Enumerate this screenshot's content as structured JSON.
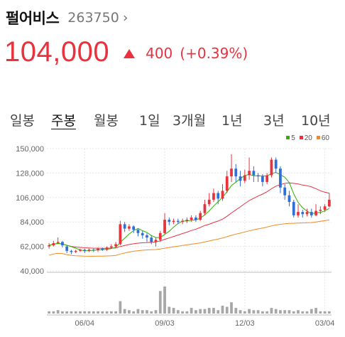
{
  "stock": {
    "name": "펄어비스",
    "code": "263750",
    "chevron": "›",
    "price": "104,000",
    "change": "400",
    "change_pct": "(+0.39%)"
  },
  "tabs": [
    "일봉",
    "주봉",
    "월봉",
    "1일",
    "3개월",
    "1년",
    "3년",
    "10년"
  ],
  "active_tab": "주봉",
  "legend": [
    {
      "label": "5",
      "color": "#2db400"
    },
    {
      "label": "20",
      "color": "#e8333f"
    },
    {
      "label": "60",
      "color": "#f28a23"
    }
  ],
  "colors": {
    "up": "#e8333f",
    "down": "#2f6fd6",
    "volume": "#a7a7a7",
    "grid": "#e6e6e6",
    "axis_text": "#666666"
  },
  "chart_data": {
    "type": "candlestick",
    "y_ticks": [
      "150,000",
      "128,000",
      "106,000",
      "84,000",
      "62,000",
      "40,000"
    ],
    "y_tick_values": [
      150000,
      128000,
      106000,
      84000,
      62000,
      40000
    ],
    "ylim": [
      40000,
      150000
    ],
    "x_ticks": [
      "06/04",
      "09/03",
      "12/03",
      "03/04"
    ],
    "x_tick_indices": [
      8,
      26,
      44,
      62
    ],
    "candles": [
      [
        62000,
        63000,
        60000,
        65000
      ],
      [
        63000,
        65000,
        62000,
        67000
      ],
      [
        65000,
        66000,
        64000,
        70000
      ],
      [
        66000,
        63000,
        61000,
        67000
      ],
      [
        62000,
        58000,
        56000,
        63000
      ],
      [
        58000,
        57000,
        55000,
        59000
      ],
      [
        57000,
        58000,
        56000,
        59000
      ],
      [
        58000,
        59000,
        57000,
        60000
      ],
      [
        59000,
        58000,
        56000,
        60000
      ],
      [
        58000,
        59000,
        57000,
        60000
      ],
      [
        59000,
        58500,
        57000,
        60000
      ],
      [
        58500,
        60000,
        57000,
        61000
      ],
      [
        60000,
        59000,
        58000,
        61000
      ],
      [
        59000,
        61000,
        58000,
        62000
      ],
      [
        61000,
        62000,
        60000,
        64000
      ],
      [
        62000,
        64000,
        61000,
        66000
      ],
      [
        64000,
        82000,
        63000,
        85000
      ],
      [
        82000,
        78000,
        75000,
        84000
      ],
      [
        78000,
        80000,
        76000,
        82000
      ],
      [
        80000,
        77000,
        74000,
        81000
      ],
      [
        77000,
        74000,
        71000,
        78000
      ],
      [
        74000,
        72000,
        69000,
        76000
      ],
      [
        72000,
        70000,
        66000,
        74000
      ],
      [
        70000,
        66000,
        64000,
        72000
      ],
      [
        66000,
        68000,
        62000,
        70000
      ],
      [
        68000,
        74000,
        66000,
        76000
      ],
      [
        74000,
        86000,
        73000,
        92000
      ],
      [
        86000,
        84000,
        81000,
        88000
      ],
      [
        84000,
        85000,
        82000,
        87000
      ],
      [
        85000,
        84000,
        82000,
        87000
      ],
      [
        84000,
        85000,
        82000,
        87000
      ],
      [
        85000,
        86000,
        83000,
        88000
      ],
      [
        86000,
        88000,
        84000,
        90000
      ],
      [
        88000,
        86000,
        84000,
        90000
      ],
      [
        86000,
        92000,
        85000,
        94000
      ],
      [
        92000,
        100000,
        90000,
        104000
      ],
      [
        100000,
        104000,
        98000,
        110000
      ],
      [
        104000,
        110000,
        102000,
        114000
      ],
      [
        110000,
        105000,
        100000,
        112000
      ],
      [
        105000,
        112000,
        103000,
        118000
      ],
      [
        112000,
        125000,
        110000,
        130000
      ],
      [
        125000,
        132000,
        120000,
        145000
      ],
      [
        132000,
        125000,
        120000,
        136000
      ],
      [
        125000,
        121000,
        116000,
        130000
      ],
      [
        121000,
        126000,
        119000,
        131000
      ],
      [
        126000,
        130000,
        122000,
        142000
      ],
      [
        130000,
        126000,
        120000,
        134000
      ],
      [
        126000,
        125000,
        120000,
        128000
      ],
      [
        125000,
        120000,
        116000,
        127000
      ],
      [
        120000,
        126000,
        118000,
        128000
      ],
      [
        126000,
        140000,
        124000,
        142000
      ],
      [
        140000,
        132000,
        128000,
        142000
      ],
      [
        132000,
        115000,
        110000,
        134000
      ],
      [
        115000,
        108000,
        104000,
        118000
      ],
      [
        108000,
        102000,
        98000,
        112000
      ],
      [
        102000,
        90000,
        88000,
        104000
      ],
      [
        90000,
        93000,
        88000,
        100000
      ],
      [
        93000,
        91000,
        88000,
        95000
      ],
      [
        91000,
        93000,
        89000,
        96000
      ],
      [
        93000,
        90000,
        88000,
        96000
      ],
      [
        90000,
        94000,
        89000,
        100000
      ],
      [
        94000,
        95000,
        91000,
        98000
      ],
      [
        95000,
        98000,
        93000,
        100000
      ],
      [
        98000,
        104000,
        97000,
        110000
      ]
    ],
    "volume": [
      2,
      2,
      3,
      2,
      2,
      2,
      2,
      2,
      2,
      2,
      2,
      2,
      2,
      2,
      2,
      2,
      11,
      4,
      3,
      2,
      4,
      3,
      3,
      2,
      3,
      20,
      24,
      6,
      5,
      3,
      2,
      2,
      5,
      3,
      4,
      4,
      5,
      5,
      3,
      7,
      6,
      10,
      5,
      3,
      2,
      4,
      3,
      3,
      2,
      2,
      5,
      4,
      3,
      3,
      3,
      2,
      3,
      2,
      2,
      4,
      5,
      2,
      2,
      2
    ]
  }
}
